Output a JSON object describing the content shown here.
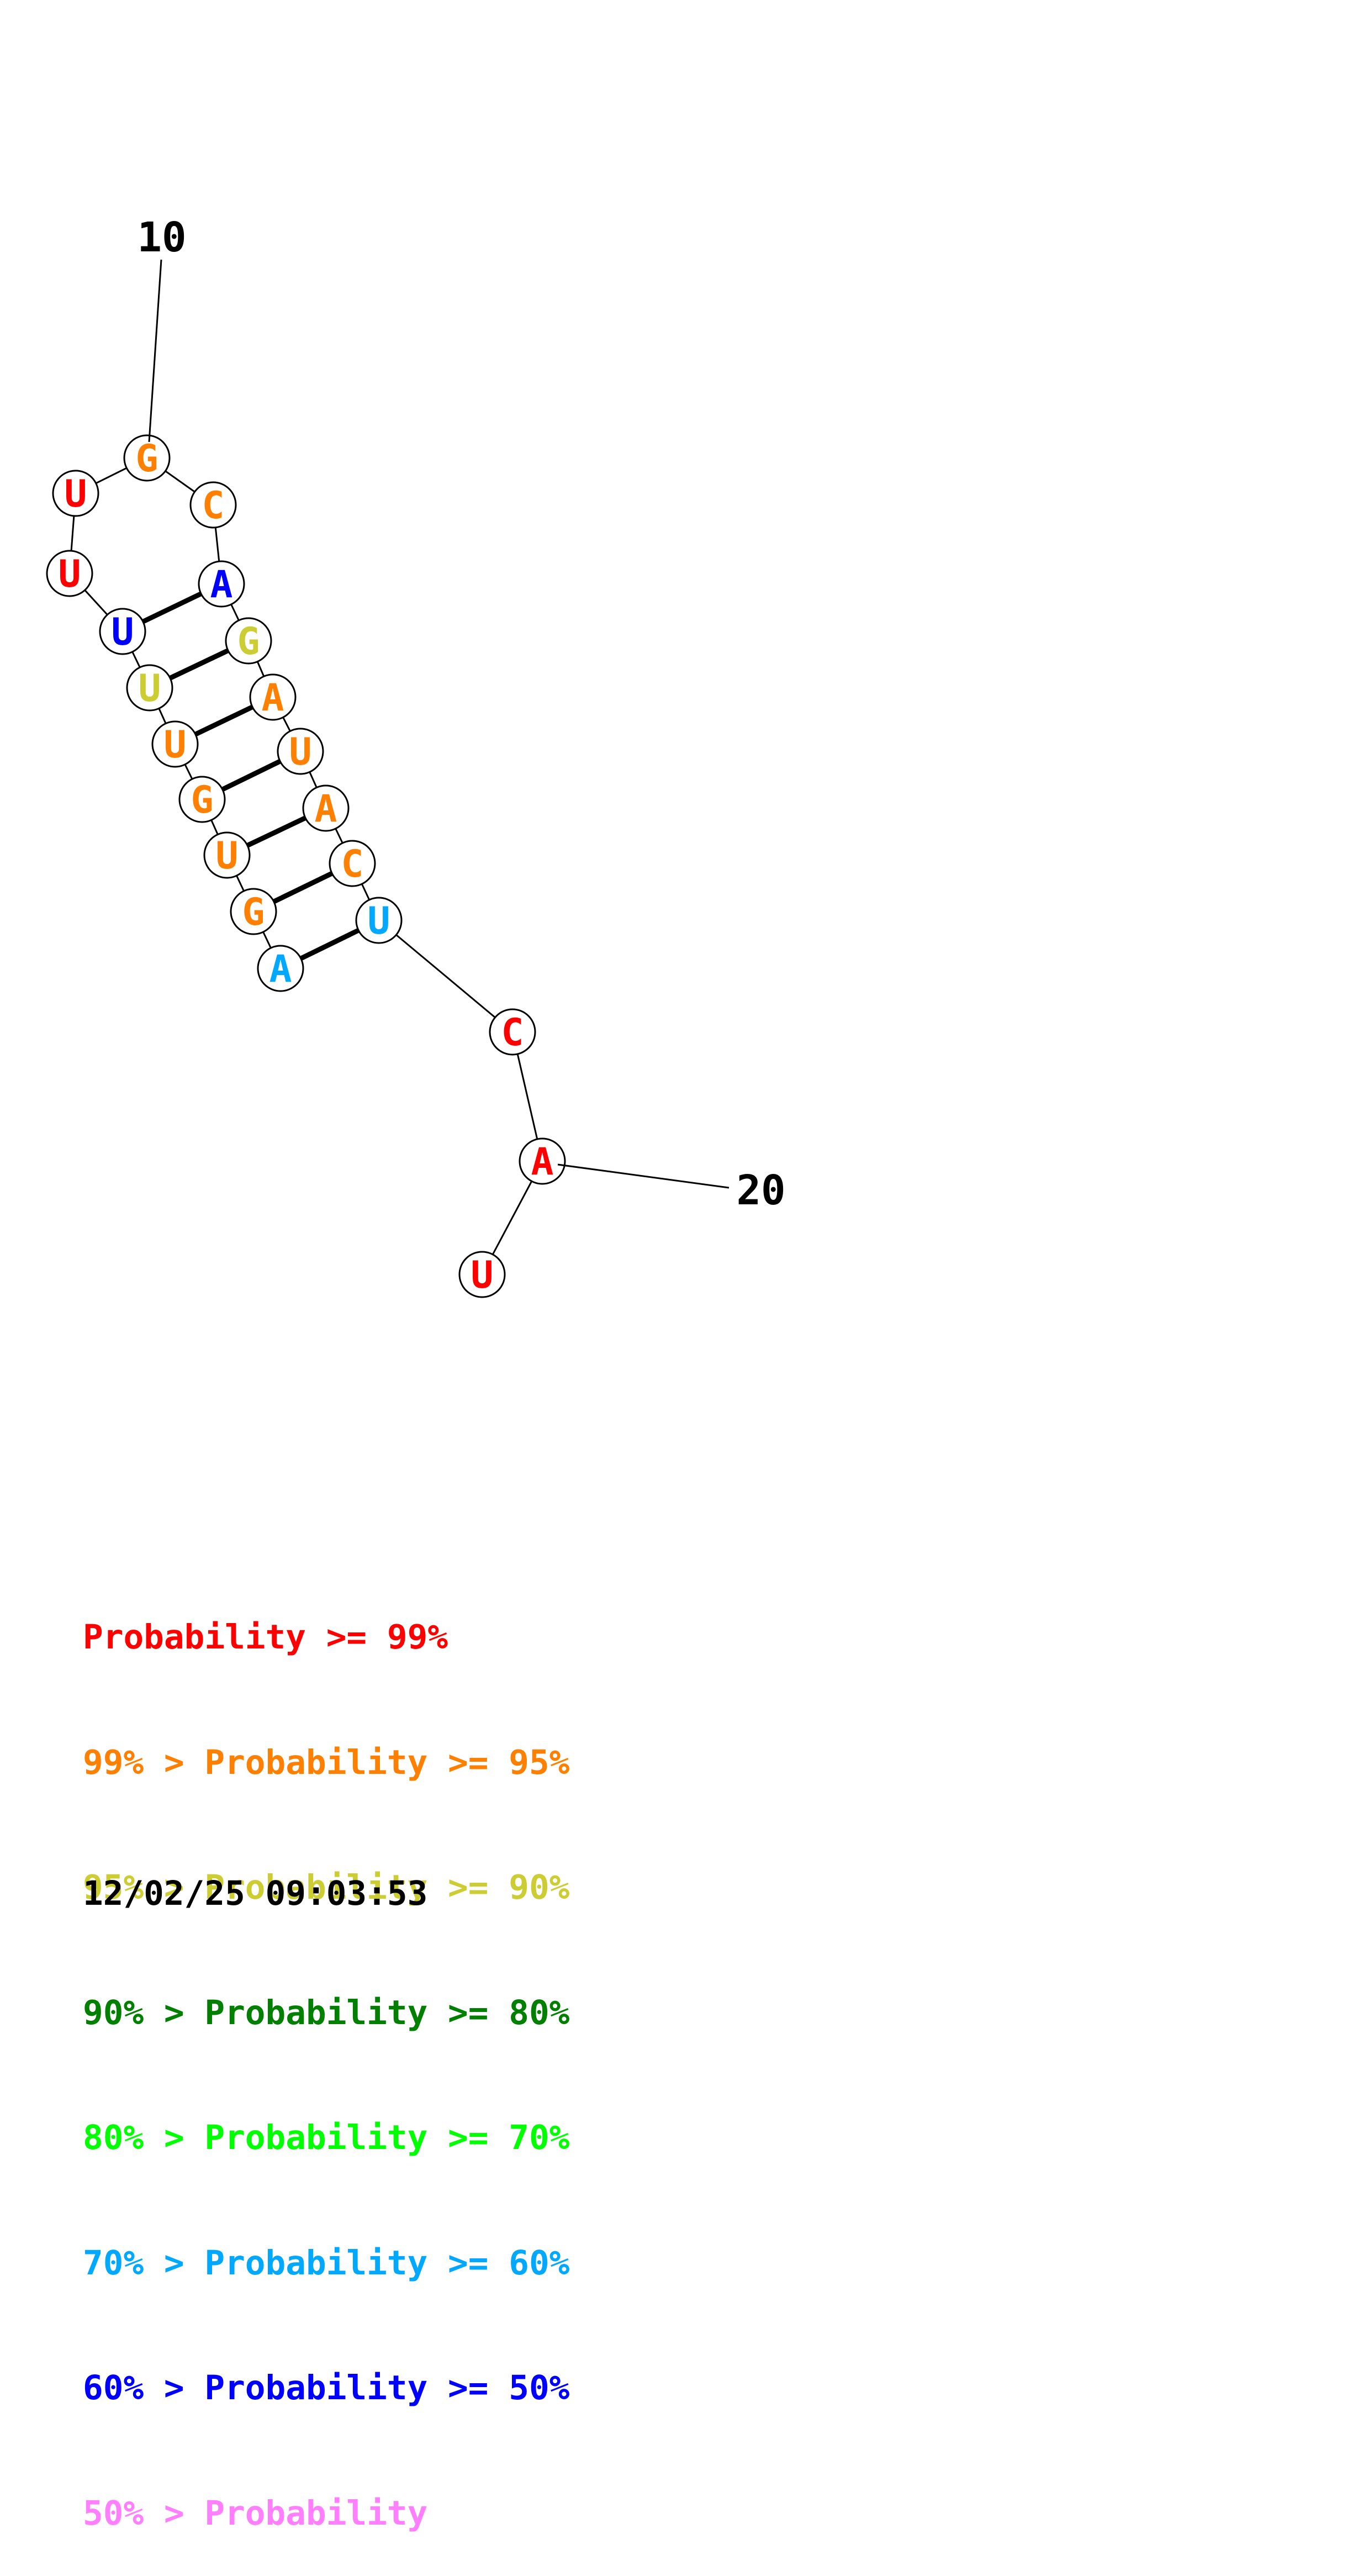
{
  "structure": {
    "labels": [
      {
        "text": "10"
      },
      {
        "text": "20"
      }
    ],
    "nucleotides": [
      {
        "base": "G",
        "color": "#ff7f00"
      },
      {
        "base": "U",
        "color": "#ff0000"
      },
      {
        "base": "C",
        "color": "#ff7f00"
      },
      {
        "base": "U",
        "color": "#ff0000"
      },
      {
        "base": "A",
        "color": "#0000ff"
      },
      {
        "base": "U",
        "color": "#0000ff"
      },
      {
        "base": "G",
        "color": "#cccc33"
      },
      {
        "base": "U",
        "color": "#cccc33"
      },
      {
        "base": "A",
        "color": "#ff7f00"
      },
      {
        "base": "U",
        "color": "#ff7f00"
      },
      {
        "base": "U",
        "color": "#ff7f00"
      },
      {
        "base": "G",
        "color": "#ff7f00"
      },
      {
        "base": "A",
        "color": "#ff7f00"
      },
      {
        "base": "U",
        "color": "#ff7f00"
      },
      {
        "base": "C",
        "color": "#ff7f00"
      },
      {
        "base": "G",
        "color": "#ff7f00"
      },
      {
        "base": "U",
        "color": "#00a8ff"
      },
      {
        "base": "A",
        "color": "#00a8ff"
      },
      {
        "base": "C",
        "color": "#ff0000"
      },
      {
        "base": "A",
        "color": "#ff0000"
      },
      {
        "base": "U",
        "color": "#ff0000"
      }
    ]
  },
  "legend": {
    "rows": [
      {
        "prefix": "",
        "text": "Probability >= 99%",
        "color": "#ff0000"
      },
      {
        "prefix": "99% > ",
        "text": "Probability >= 95%",
        "color": "#ff7f00"
      },
      {
        "prefix": "95% > ",
        "text": "Probability >= 90%",
        "color": "#cccc33"
      },
      {
        "prefix": "90% > ",
        "text": "Probability >= 80%",
        "color": "#007f00"
      },
      {
        "prefix": "80% > ",
        "text": "Probability >= 70%",
        "color": "#00ff00"
      },
      {
        "prefix": "70% > ",
        "text": "Probability >= 60%",
        "color": "#00a8ff"
      },
      {
        "prefix": "60% > ",
        "text": "Probability >= 50%",
        "color": "#0000ff"
      },
      {
        "prefix": "50% > ",
        "text": "Probability",
        "color": "#ff7fff"
      }
    ]
  },
  "timestamp": "12/02/25 09:03:53"
}
